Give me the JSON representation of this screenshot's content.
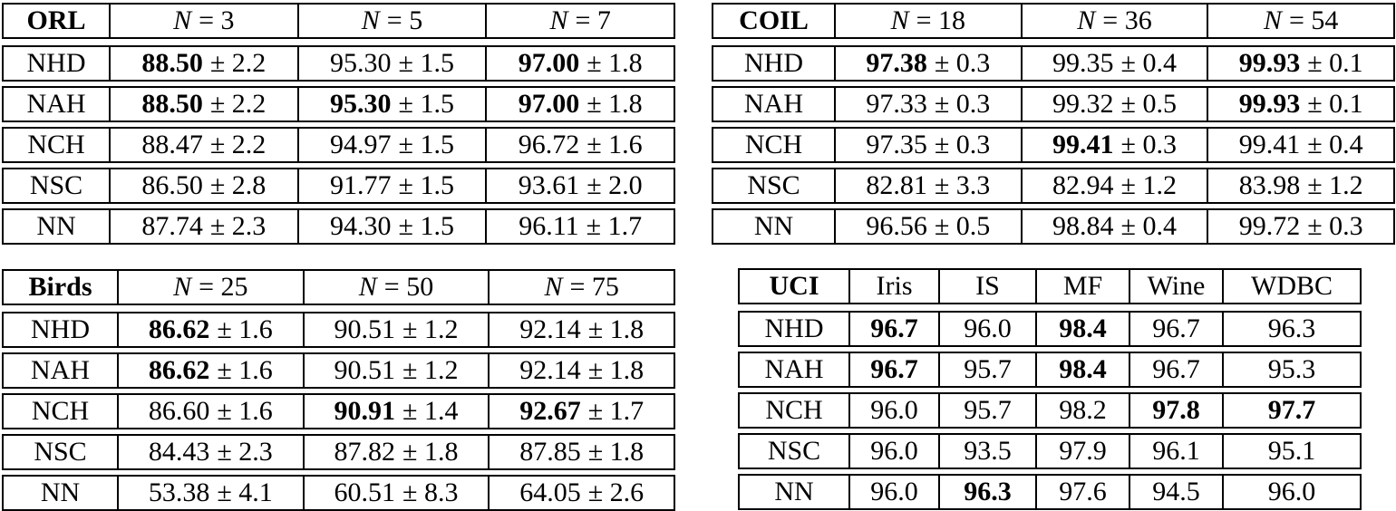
{
  "colors": {
    "background": "#ffffff",
    "text": "#000000",
    "border": "#000000"
  },
  "tables": [
    {
      "name": "ORL",
      "col_headers": [
        {
          "var": "N",
          "eq": "= 3"
        },
        {
          "var": "N",
          "eq": "= 5"
        },
        {
          "var": "N",
          "eq": "= 7"
        }
      ],
      "rows": [
        {
          "label": "NHD",
          "cells": [
            {
              "mean": "88.50",
              "pm": "± 2.2",
              "bold": true
            },
            {
              "mean": "95.30",
              "pm": "± 1.5",
              "bold": false
            },
            {
              "mean": "97.00",
              "pm": "± 1.8",
              "bold": true
            }
          ]
        },
        {
          "label": "NAH",
          "cells": [
            {
              "mean": "88.50",
              "pm": "± 2.2",
              "bold": true
            },
            {
              "mean": "95.30",
              "pm": "± 1.5",
              "bold": true
            },
            {
              "mean": "97.00",
              "pm": "± 1.8",
              "bold": true
            }
          ]
        },
        {
          "label": "NCH",
          "cells": [
            {
              "mean": "88.47",
              "pm": "± 2.2",
              "bold": false
            },
            {
              "mean": "94.97",
              "pm": "± 1.5",
              "bold": false
            },
            {
              "mean": "96.72",
              "pm": "± 1.6",
              "bold": false
            }
          ]
        },
        {
          "label": "NSC",
          "cells": [
            {
              "mean": "86.50",
              "pm": "± 2.8",
              "bold": false
            },
            {
              "mean": "91.77",
              "pm": "± 1.5",
              "bold": false
            },
            {
              "mean": "93.61",
              "pm": "± 2.0",
              "bold": false
            }
          ]
        },
        {
          "label": "NN",
          "cells": [
            {
              "mean": "87.74",
              "pm": "± 2.3",
              "bold": false
            },
            {
              "mean": "94.30",
              "pm": "± 1.5",
              "bold": false
            },
            {
              "mean": "96.11",
              "pm": "± 1.7",
              "bold": false
            }
          ]
        }
      ]
    },
    {
      "name": "COIL",
      "col_headers": [
        {
          "var": "N",
          "eq": "= 18"
        },
        {
          "var": "N",
          "eq": "= 36"
        },
        {
          "var": "N",
          "eq": "= 54"
        }
      ],
      "rows": [
        {
          "label": "NHD",
          "cells": [
            {
              "mean": "97.38",
              "pm": "± 0.3",
              "bold": true
            },
            {
              "mean": "99.35",
              "pm": "± 0.4",
              "bold": false
            },
            {
              "mean": "99.93",
              "pm": "± 0.1",
              "bold": true
            }
          ]
        },
        {
          "label": "NAH",
          "cells": [
            {
              "mean": "97.33",
              "pm": "± 0.3",
              "bold": false
            },
            {
              "mean": "99.32",
              "pm": "± 0.5",
              "bold": false
            },
            {
              "mean": "99.93",
              "pm": "± 0.1",
              "bold": true
            }
          ]
        },
        {
          "label": "NCH",
          "cells": [
            {
              "mean": "97.35",
              "pm": "± 0.3",
              "bold": false
            },
            {
              "mean": "99.41",
              "pm": "± 0.3",
              "bold": true
            },
            {
              "mean": "99.41",
              "pm": "± 0.4",
              "bold": false
            }
          ]
        },
        {
          "label": "NSC",
          "cells": [
            {
              "mean": "82.81",
              "pm": "± 3.3",
              "bold": false
            },
            {
              "mean": "82.94",
              "pm": "± 1.2",
              "bold": false
            },
            {
              "mean": "83.98",
              "pm": "± 1.2",
              "bold": false
            }
          ]
        },
        {
          "label": "NN",
          "cells": [
            {
              "mean": "96.56",
              "pm": "± 0.5",
              "bold": false
            },
            {
              "mean": "98.84",
              "pm": "± 0.4",
              "bold": false
            },
            {
              "mean": "99.72",
              "pm": "± 0.3",
              "bold": false
            }
          ]
        }
      ]
    },
    {
      "name": "Birds",
      "col_headers": [
        {
          "var": "N",
          "eq": "= 25"
        },
        {
          "var": "N",
          "eq": "= 50"
        },
        {
          "var": "N",
          "eq": "= 75"
        }
      ],
      "rows": [
        {
          "label": "NHD",
          "cells": [
            {
              "mean": "86.62",
              "pm": "± 1.6",
              "bold": true
            },
            {
              "mean": "90.51",
              "pm": "± 1.2",
              "bold": false
            },
            {
              "mean": "92.14",
              "pm": "± 1.8",
              "bold": false
            }
          ]
        },
        {
          "label": "NAH",
          "cells": [
            {
              "mean": "86.62",
              "pm": "± 1.6",
              "bold": true
            },
            {
              "mean": "90.51",
              "pm": "± 1.2",
              "bold": false
            },
            {
              "mean": "92.14",
              "pm": "± 1.8",
              "bold": false
            }
          ]
        },
        {
          "label": "NCH",
          "cells": [
            {
              "mean": "86.60",
              "pm": "± 1.6",
              "bold": false
            },
            {
              "mean": "90.91",
              "pm": "± 1.4",
              "bold": true
            },
            {
              "mean": "92.67",
              "pm": "± 1.7",
              "bold": true
            }
          ]
        },
        {
          "label": "NSC",
          "cells": [
            {
              "mean": "84.43",
              "pm": "± 2.3",
              "bold": false
            },
            {
              "mean": "87.82",
              "pm": "± 1.8",
              "bold": false
            },
            {
              "mean": "87.85",
              "pm": "± 1.8",
              "bold": false
            }
          ]
        },
        {
          "label": "NN",
          "cells": [
            {
              "mean": "53.38",
              "pm": "± 4.1",
              "bold": false
            },
            {
              "mean": "60.51",
              "pm": "± 8.3",
              "bold": false
            },
            {
              "mean": "64.05",
              "pm": "± 2.6",
              "bold": false
            }
          ]
        }
      ]
    },
    {
      "name": "UCI",
      "col_headers": [
        "Iris",
        "IS",
        "MF",
        "Wine",
        "WDBC"
      ],
      "rows": [
        {
          "label": "NHD",
          "cells": [
            {
              "value": "96.7",
              "bold": true
            },
            {
              "value": "96.0",
              "bold": false
            },
            {
              "value": "98.4",
              "bold": true
            },
            {
              "value": "96.7",
              "bold": false
            },
            {
              "value": "96.3",
              "bold": false
            }
          ]
        },
        {
          "label": "NAH",
          "cells": [
            {
              "value": "96.7",
              "bold": true
            },
            {
              "value": "95.7",
              "bold": false
            },
            {
              "value": "98.4",
              "bold": true
            },
            {
              "value": "96.7",
              "bold": false
            },
            {
              "value": "95.3",
              "bold": false
            }
          ]
        },
        {
          "label": "NCH",
          "cells": [
            {
              "value": "96.0",
              "bold": false
            },
            {
              "value": "95.7",
              "bold": false
            },
            {
              "value": "98.2",
              "bold": false
            },
            {
              "value": "97.8",
              "bold": true
            },
            {
              "value": "97.7",
              "bold": true
            }
          ]
        },
        {
          "label": "NSC",
          "cells": [
            {
              "value": "96.0",
              "bold": false
            },
            {
              "value": "93.5",
              "bold": false
            },
            {
              "value": "97.9",
              "bold": false
            },
            {
              "value": "96.1",
              "bold": false
            },
            {
              "value": "95.1",
              "bold": false
            }
          ]
        },
        {
          "label": "NN",
          "cells": [
            {
              "value": "96.0",
              "bold": false
            },
            {
              "value": "96.3",
              "bold": true
            },
            {
              "value": "97.6",
              "bold": false
            },
            {
              "value": "94.5",
              "bold": false
            },
            {
              "value": "96.0",
              "bold": false
            }
          ]
        }
      ]
    }
  ]
}
